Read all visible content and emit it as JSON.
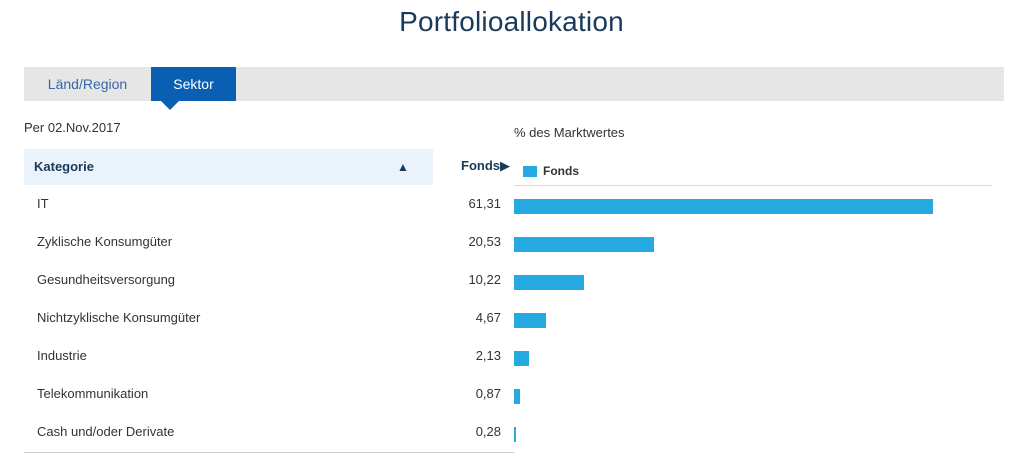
{
  "page": {
    "title": "Portfolioallokation",
    "as_of": "Per 02.Nov.2017",
    "percent_label": "% des Marktwertes"
  },
  "tabs": [
    {
      "label": "Länd/Region",
      "active": false
    },
    {
      "label": "Sektor",
      "active": true
    }
  ],
  "table": {
    "header_category": "Kategorie",
    "header_fonds": "Fonds▶",
    "legend_label": "Fonds",
    "bar_color": "#26a9e0",
    "sort_icon": "triangle-up-icon",
    "sort_glyph": "▲"
  },
  "chart_data": {
    "type": "bar",
    "orientation": "horizontal",
    "title": "% des Marktwertes",
    "categories": [
      "IT",
      "Zyklische Konsumgüter",
      "Gesundheitsversorgung",
      "Nichtzyklische Konsumgüter",
      "Industrie",
      "Telekommunikation",
      "Cash und/oder Derivate"
    ],
    "series": [
      {
        "name": "Fonds",
        "values": [
          61.31,
          20.53,
          10.22,
          4.67,
          2.13,
          0.87,
          0.28
        ],
        "labels": [
          "61,31",
          "20,53",
          "10,22",
          "4,67",
          "2,13",
          "0,87",
          "0,28"
        ]
      }
    ],
    "xlim": [
      0,
      70
    ],
    "grid": false,
    "legend": "top-left"
  }
}
